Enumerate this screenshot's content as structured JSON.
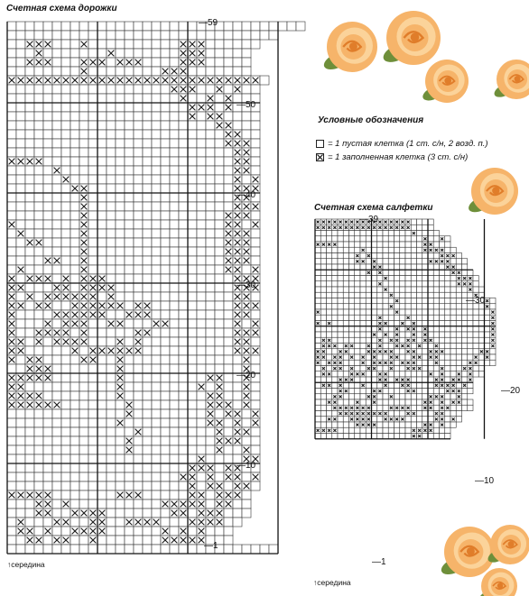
{
  "runner": {
    "title": "Счетная схема дорожки",
    "row_labels": [
      "59",
      "50",
      "40",
      "30",
      "20",
      "10",
      "1"
    ],
    "bottom_note": "серединa",
    "rows": [
      ".................................",
      "..............................   ",
      "..XXX...X..........XXX......     ",
      "...X.......X.......XXX.....      ",
      "..XXX...XXX.XXX....XXX.....      ",
      "........X........XXX.......      ",
      "XXXXXXXXXXXXXXXXXXXXXXXXXXXX.    ",
      "..................XXX..X.X..     ",
      "...................X..X.X...     ",
      "....................XXX.X...     ",
      "....................X.XX....     ",
      ".......................XX...     ",
      "........................XX..     ",
      "........................XXX.     ",
      ".........................XX.     ",
      "XXXX.....................XX.     ",
      ".....X...................XX.     ",
      "......X..................X.X     ",
      ".......XX................XXX     ",
      "........X................XX.     ",
      "........X................XXX     ",
      "........X...............XXX.     ",
      "X.......X...............XX.X     ",
      ".X......X...............XXX.     ",
      "..XX....X...............XXX.     ",
      "........X...............XXX.     ",
      "....XX..X...............XXX.     ",
      ".X......X...............XX.X     ",
      "X.XXX.X.XXX..............XXX     ",
      "XX...XX.XXXX.............XXX     ",
      "X.X.XXXXXX.X.............XX.     ",
      "XX.XX..XXXXXX.XX.........XXX     ",
      "X....XXXXXX..XXX.........XX.     ",
      "X...X.XXX..XX...XX.......X.X     ",
      "X..XXXX.X.....XX.........XXX     ",
      "XX.X.XXXX...X.X..........XX.     ",
      "XX.....X.XXXXXX..........XXX     ",
      "X.XX....XX..X.............X.     ",
      "..XXX.......X.............X.     ",
      "XXXXX.......X.........XX..X.     ",
      "XX..........X........X.X..X.     ",
      "XXXX........X.........XX..X.     ",
      "XXXXXX.......X........XXX.X.     ",
      ".............X........X.XX.X     ",
      "............X.........XX.X.X     ",
      "..............X........X.XX.     ",
      ".............X.........XXX..     ",
      ".............X.........X..X.     ",
      ".....................X....XX     ",
      "....................XXX.XX..     ",
      "...................XX.X.XX.X     ",
      "....................X.XX.XX.     ",
      "XXXXX.......XXX.....XX.XXX.      ",
      "...XX.X..........XXXXX.XX..      ",
      "...XX..XXXX.......XX.XXX...      ",
      ".X...XX..XX..XXXX...XXXX..       ",
      ".XX.X..XXXX......X.X.X...        ",
      "..XX.XX..X.......XXXXX...        ",
      "..............................   "
    ]
  },
  "doily": {
    "title": "Счетная схема салфетки",
    "row_labels": [
      "39",
      "30",
      "20",
      "10",
      "1"
    ],
    "bottom_note": "серединa",
    "rows": [
      "XXXXXXXXXXXXXXXXX....           ",
      "XXXXXXXXXXXXXXXXX....           ",
      ".................X....          ",
      "...................X..X.        ",
      "XXXX...............XX...        ",
      "........X..........XXXX..       ",
      ".......X.X............XXX.      ",
      ".......XX.X.........XXXX...     ",
      "..........XX...........XX..     ",
      ".........X.X............XX..    ",
      "............X............XXX.   ",
      "...........X.............XXX.   ",
      "............X..............X..  ",
      ".............X..............X.  ",
      "..............X...............X.",
      ".............X................X.",
      "X.............X................X",
      "...........X....X..............X",
      "X.X........XX..X.X.............X",
      "...........X..X.XX.X...........X",
      "..........X.X.X..X.X...........X",
      ".XX........X.XX.XX.XX..........X",
      ".XXX.XX..X.X..XXX.X..X.........X",
      "XX..XX...XXXXX..XX..XXX......XX.",
      "XX.XX.X.X.X..XX..XX.XX......X.X.",
      "X.XXX...X.XXXX.XXX...X.....XX...",
      ".X.XX.X..XX..X..XXX...X...XX..  ",
      ".XX...XXX..XX.......X.X..X.X..  ",
      "....XXX....XX.XXX....XX.XX.X    ",
      ".XX.X...X...X..XX....XXXX.X.    ",
      "....XX....XX....XX.....XXX..    ",
      "...XX....XX..X......XXX..X.     ",
      "..XX...X..X........XX.X.XX..    ",
      "...XXXXXXX...XXXX..XX.XX....    ",
      "....XXXXXXXXX...XX...XX...      ",
      "..XX..XXXX..XXXX.....XX.X.      ",
      ".......XXXX........XX.X..       ",
      "XXXX.............XXXX...        ",
      ".................XX.....        "
    ]
  },
  "legend": {
    "title": "Условные обозначения",
    "empty_label": "= 1 пустая клетка (1 ст. с/н, 2 возд. п.)",
    "filled_label": "= 1 заполненная клетка (3 ст. с/н)"
  },
  "colors": {
    "grid_line": "#333333",
    "grid_major": "#111111",
    "cross": "#1a1a1a",
    "rose_petal": "#f6b46a",
    "rose_dark": "#e07d2a",
    "rose_light": "#fbd39a",
    "leaf": "#6e8f3a"
  }
}
